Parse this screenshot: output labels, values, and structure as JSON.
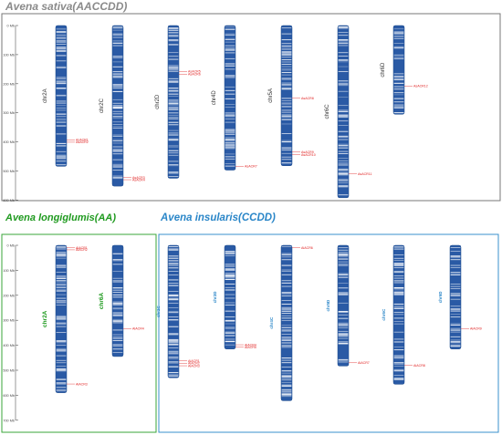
{
  "titles": {
    "sativa": "Avena sativa(AACCDD)",
    "longiglumis": "Avena longiglumis(AA)",
    "insularis": "Avena insularis(CCDD)"
  },
  "colors": {
    "chromosome_dark": "#2a5aa5",
    "chromosome_light": "#ffffff",
    "chromosome_label_sativa": "#333333",
    "chromosome_label_longiglumis": "#1f9a1f",
    "chromosome_label_insularis": "#2a86c8",
    "gene_label": "#e02020",
    "sativa_frame": "#777777",
    "longiglumis_frame": "#3aa63a",
    "insularis_frame": "#3a90cc"
  },
  "panels": [
    {
      "id": "sativa",
      "scale_ticks": [
        "0 Mb",
        "100 Mb",
        "200 Mb",
        "300 Mb",
        "400 Mb",
        "500 Mb",
        "600 Mb"
      ],
      "chromosomes": [
        {
          "name": "chr2A",
          "length_mb": 484,
          "genes": [
            {
              "label": "AsACR1",
              "pos_mb": 393
            },
            {
              "label": "AsACR2",
              "pos_mb": 401
            }
          ]
        },
        {
          "name": "chr2C",
          "length_mb": 552,
          "genes": [
            {
              "label": "AsACR3",
              "pos_mb": 522
            },
            {
              "label": "AsACR4",
              "pos_mb": 530
            }
          ]
        },
        {
          "name": "chr2D",
          "length_mb": 525,
          "genes": [
            {
              "label": "AsACR5",
              "pos_mb": 158
            },
            {
              "label": "AsACR6",
              "pos_mb": 167
            }
          ]
        },
        {
          "name": "chr4D",
          "length_mb": 497,
          "genes": [
            {
              "label": "AsACR7",
              "pos_mb": 484
            }
          ]
        },
        {
          "name": "chr5A",
          "length_mb": 482,
          "genes": [
            {
              "label": "AsACR8",
              "pos_mb": 250
            },
            {
              "label": "AsACR9",
              "pos_mb": 435
            },
            {
              "label": "AsACR10",
              "pos_mb": 444
            }
          ]
        },
        {
          "name": "chr6C",
          "length_mb": 592,
          "genes": [
            {
              "label": "AsACR11",
              "pos_mb": 510
            }
          ]
        },
        {
          "name": "chr6D",
          "length_mb": 305,
          "genes": [
            {
              "label": "AsACR12",
              "pos_mb": 208
            }
          ]
        }
      ]
    },
    {
      "id": "longiglumis",
      "scale_ticks": [
        "0 Mb",
        "100 Mb",
        "200 Mb",
        "300 Mb",
        "400 Mb",
        "500 Mb",
        "600 Mb",
        "700 Mb"
      ],
      "chromosomes": [
        {
          "name": "chr2A",
          "length_mb": 590,
          "genes": [
            {
              "label": "AlACR1",
              "pos_mb": 9
            },
            {
              "label": "AlACR2",
              "pos_mb": 18
            },
            {
              "label": "AlACR3",
              "pos_mb": 555
            }
          ]
        },
        {
          "name": "chr6A",
          "length_mb": 445,
          "genes": [
            {
              "label": "AlACR4",
              "pos_mb": 333
            }
          ]
        }
      ]
    },
    {
      "id": "insularis",
      "scale_ticks": [],
      "chromosomes": [
        {
          "name": "chr2C",
          "length_mb": 530,
          "genes": [
            {
              "label": "AiACR1",
              "pos_mb": 462
            },
            {
              "label": "AiACR2",
              "pos_mb": 472
            },
            {
              "label": "AiACR3",
              "pos_mb": 482
            }
          ]
        },
        {
          "name": "chr2D",
          "length_mb": 415,
          "genes": [
            {
              "label": "AiACR4",
              "pos_mb": 398
            },
            {
              "label": "AiACR5",
              "pos_mb": 408
            }
          ]
        },
        {
          "name": "chr4C",
          "length_mb": 622,
          "genes": [
            {
              "label": "AiACR6",
              "pos_mb": 10
            }
          ]
        },
        {
          "name": "chr5D",
          "length_mb": 483,
          "genes": [
            {
              "label": "AiACR7",
              "pos_mb": 470
            }
          ]
        },
        {
          "name": "chr6C",
          "length_mb": 556,
          "genes": [
            {
              "label": "AiACR8",
              "pos_mb": 480
            }
          ]
        },
        {
          "name": "chr6D",
          "length_mb": 415,
          "genes": [
            {
              "label": "AiACR9",
              "pos_mb": 333
            }
          ]
        }
      ]
    }
  ]
}
